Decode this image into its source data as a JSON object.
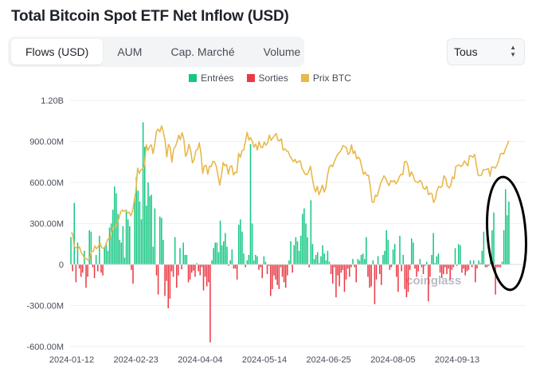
{
  "header": {
    "title": "Total Bitcoin Spot ETF Net Inflow (USD)"
  },
  "tabs": [
    {
      "label": "Flows (USD)",
      "active": true
    },
    {
      "label": "AUM",
      "active": false
    },
    {
      "label": "Cap. Marché",
      "active": false
    },
    {
      "label": "Volume",
      "active": false
    }
  ],
  "range_select": {
    "value": "Tous"
  },
  "watermark": "coinglass",
  "colors": {
    "inflow": "#16c784",
    "outflow": "#ea3943",
    "price": "#e8b84b",
    "grid": "#eef0f2",
    "annotation": "#000000"
  },
  "chart_data": {
    "type": "bar",
    "title": "Total Bitcoin Spot ETF Net Inflow (USD)",
    "legend": [
      {
        "name": "Entrées",
        "color": "#16c784",
        "kind": "bar"
      },
      {
        "name": "Sorties",
        "color": "#ea3943",
        "kind": "bar"
      },
      {
        "name": "Prix BTC",
        "color": "#e8b84b",
        "kind": "line"
      }
    ],
    "legend_position": "top-center",
    "ylim": [
      -600,
      1200
    ],
    "y_unit": "M USD",
    "y_ticks": [
      "1.20B",
      "900.00M",
      "600.00M",
      "300.00M",
      "0",
      "-300.00M",
      "-600.00M"
    ],
    "x_ticks": [
      "2024-01-12",
      "2024-02-23",
      "2024-04-04",
      "2024-05-14",
      "2024-06-25",
      "2024-08-05",
      "2024-09-13"
    ],
    "grid": true,
    "flows_series": {
      "name": "Net flow (M USD)",
      "start": "2024-01-11",
      "values": [
        200,
        -50,
        450,
        -130,
        160,
        -30,
        -90,
        -60,
        100,
        -170,
        -90,
        250,
        240,
        -20,
        -100,
        70,
        -50,
        210,
        -60,
        -80,
        130,
        160,
        100,
        270,
        300,
        400,
        570,
        520,
        370,
        180,
        160,
        280,
        50,
        400,
        330,
        280,
        -40,
        -140,
        480,
        640,
        540,
        460,
        330,
        1040,
        860,
        430,
        600,
        500,
        510,
        130,
        410,
        -80,
        -220,
        350,
        340,
        180,
        -230,
        -120,
        -320,
        -250,
        -50,
        -90,
        200,
        -170,
        -80,
        120,
        -35,
        160,
        70,
        70,
        -130,
        -110,
        -60,
        -45,
        -90,
        10,
        -50,
        -80,
        -20,
        -190,
        -90,
        -160,
        -130,
        -570,
        30,
        120,
        160,
        160,
        90,
        320,
        140,
        170,
        230,
        130,
        -10,
        30,
        110,
        -30,
        -30,
        -110,
        290,
        330,
        240,
        80,
        -20,
        30,
        70,
        880,
        300,
        30,
        70,
        60,
        -40,
        -20,
        -100,
        60,
        20,
        -70,
        -10,
        -230,
        -180,
        -80,
        -110,
        -150,
        -180,
        -20,
        -90,
        -130,
        -170,
        -80,
        30,
        170,
        -60,
        140,
        200,
        170,
        100,
        210,
        370,
        410,
        300,
        200,
        -20,
        470,
        150,
        40,
        70,
        90,
        10,
        60,
        140,
        80,
        30,
        100,
        20,
        -70,
        -140,
        -20,
        -240,
        -80,
        -160,
        -60,
        -40,
        -200,
        -110,
        -30,
        -90,
        -20,
        40,
        -20,
        -130,
        40,
        30,
        70,
        80,
        40,
        200,
        -90,
        -170,
        -160,
        30,
        -290,
        -110,
        60,
        -70,
        -150,
        70,
        100,
        250,
        180,
        -40,
        -20,
        110,
        150,
        -90,
        -200,
        210,
        -50,
        70,
        -180,
        -240,
        -200,
        -40,
        190,
        160,
        -30,
        -90,
        -50,
        40,
        -20,
        -70,
        -10,
        20,
        -270,
        -90,
        70,
        230,
        10,
        60,
        80,
        -60,
        -100,
        -70,
        -20,
        -70,
        -30,
        -110,
        -40,
        -20,
        120,
        -10,
        150,
        140,
        -60,
        -30,
        -80,
        -50,
        -40,
        30,
        -20,
        30,
        -130,
        -30,
        30,
        10,
        100,
        240,
        -20,
        -20,
        -10,
        60,
        250,
        380,
        -220,
        -20,
        -20,
        -20,
        20,
        250,
        550,
        360,
        460
      ]
    },
    "price_series": {
      "name": "Prix BTC (USD)",
      "start": "2024-01-11",
      "values": [
        46500,
        46300,
        43000,
        42800,
        42500,
        43000,
        41500,
        41000,
        40000,
        40100,
        39700,
        39900,
        42000,
        41800,
        43200,
        42500,
        43100,
        43900,
        42800,
        42600,
        43000,
        44300,
        45100,
        45300,
        47100,
        48000,
        47800,
        49000,
        50000,
        51600,
        52100,
        51800,
        52000,
        51400,
        51600,
        50700,
        51800,
        54300,
        57000,
        62500,
        61200,
        62100,
        62400,
        63100,
        68300,
        66900,
        67900,
        68300,
        66100,
        68500,
        71600,
        72200,
        71500,
        73000,
        71400,
        69400,
        65300,
        68400,
        67600,
        64000,
        67200,
        67800,
        69000,
        70700,
        69600,
        71300,
        69700,
        65400,
        66300,
        68400,
        66900,
        63800,
        64600,
        66900,
        67100,
        68800,
        66200,
        61200,
        63100,
        63200,
        61000,
        63000,
        62900,
        64200,
        64000,
        62900,
        60600,
        58300,
        60800,
        63900,
        63100,
        63400,
        61000,
        62900,
        63100,
        60800,
        61500,
        61400,
        66200,
        65200,
        66900,
        67000,
        69200,
        71400,
        69500,
        70100,
        69200,
        67700,
        68500,
        67000,
        69100,
        67700,
        67600,
        69000,
        68200,
        68800,
        70700,
        69400,
        70000,
        70600,
        71100,
        69400,
        69300,
        69800,
        67000,
        67300,
        66800,
        66600,
        65500,
        64900,
        64100,
        64700,
        63800,
        64200,
        64300,
        62600,
        61700,
        61000,
        60900,
        61700,
        63000,
        60300,
        57900,
        56600,
        58000,
        55900,
        57000,
        58300,
        56600,
        57700,
        60800,
        62800,
        63300,
        62900,
        64100,
        65200,
        66000,
        66400,
        67000,
        68100,
        67900,
        67600,
        65900,
        66300,
        68300,
        66100,
        66800,
        64800,
        65300,
        64600,
        62800,
        61000,
        61500,
        60700,
        60700,
        58000,
        54200,
        54000,
        55800,
        55500,
        57100,
        58700,
        59600,
        60600,
        60000,
        58900,
        58200,
        59400,
        59100,
        59500,
        58600,
        59300,
        60400,
        61000,
        60900,
        64100,
        64200,
        63100,
        60400,
        61600,
        60700,
        59300,
        59100,
        58900,
        59500,
        59000,
        57500,
        57300,
        58000,
        55900,
        56300,
        56200,
        54000,
        54900,
        57000,
        58000,
        57700,
        58100,
        60600,
        60000,
        58100,
        57600,
        58200,
        60300,
        59900,
        62900,
        63200,
        63300,
        62900,
        63300,
        64300,
        63700,
        63100,
        65600,
        65500,
        65200,
        65900,
        63300,
        60800,
        60600,
        60800,
        62100,
        62100,
        62200,
        62400,
        60500,
        62800,
        62800,
        62500,
        63200,
        64300,
        66000,
        66200,
        66000,
        67300,
        68300,
        69300
      ],
      "right_axis_hidden": true
    },
    "annotations": [
      {
        "type": "ellipse",
        "note": "hand-drawn black ellipse around the latest inflow bars"
      }
    ]
  }
}
